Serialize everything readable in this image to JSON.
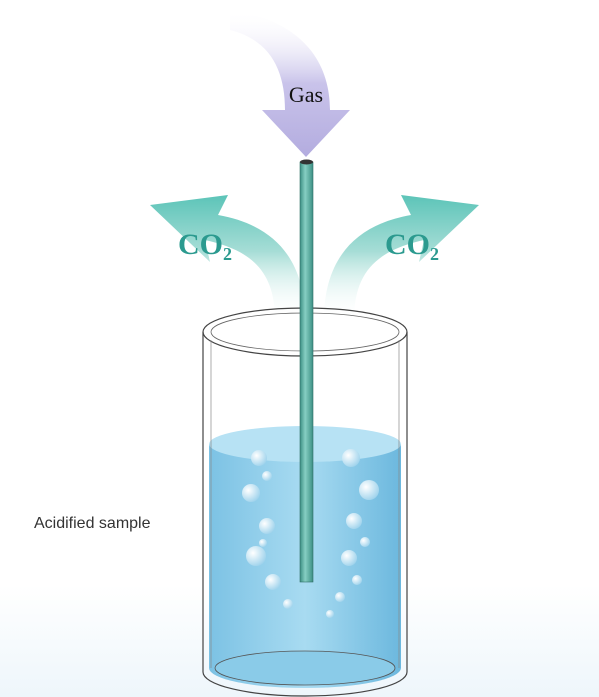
{
  "labels": {
    "gas": "Gas",
    "co2_left": "CO₂",
    "co2_right": "CO₂",
    "sample": "Acidified sample"
  }
}
